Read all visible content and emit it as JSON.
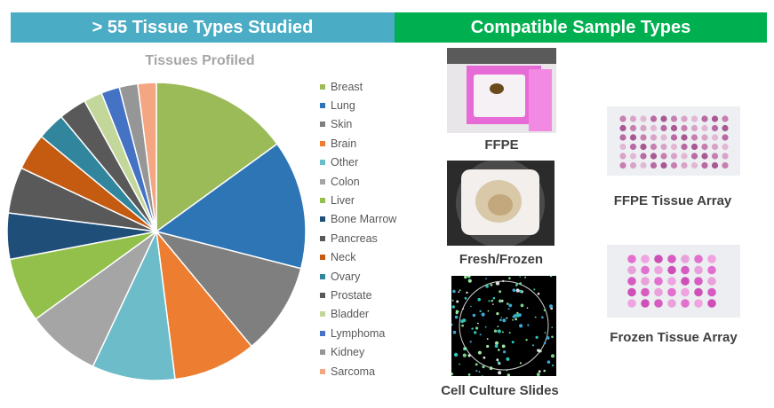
{
  "header": {
    "left_title": "> 55 Tissue Types Studied",
    "right_title": "Compatible Sample Types"
  },
  "chart_data": {
    "type": "pie",
    "title": "Tissues Profiled",
    "legend_position": "right",
    "categories": [
      "Breast",
      "Lung",
      "Skin",
      "Brain",
      "Other",
      "Colon",
      "Liver",
      "Bone Marrow",
      "Pancreas",
      "Neck",
      "Ovary",
      "Prostate",
      "Bladder",
      "Lymphoma",
      "Kidney",
      "Sarcoma"
    ],
    "values": [
      15,
      14,
      10,
      9,
      9,
      8,
      7,
      5,
      5,
      4,
      3,
      3,
      2,
      2,
      2,
      2
    ],
    "colors": [
      "#9bbb59",
      "#2e75b6",
      "#7f7f7f",
      "#ed7d31",
      "#6dbcc9",
      "#a5a5a5",
      "#92c04a",
      "#1f4e79",
      "#595959",
      "#c55a11",
      "#31859c",
      "#595959",
      "#c4d79b",
      "#4472c4",
      "#969696",
      "#f4a582"
    ]
  },
  "samples": {
    "ffpe": "FFPE",
    "fresh_frozen": "Fresh/Frozen",
    "cell_culture": "Cell Culture Slides",
    "ffpe_array": "FFPE Tissue Array",
    "frozen_array": "Frozen Tissue Array"
  }
}
